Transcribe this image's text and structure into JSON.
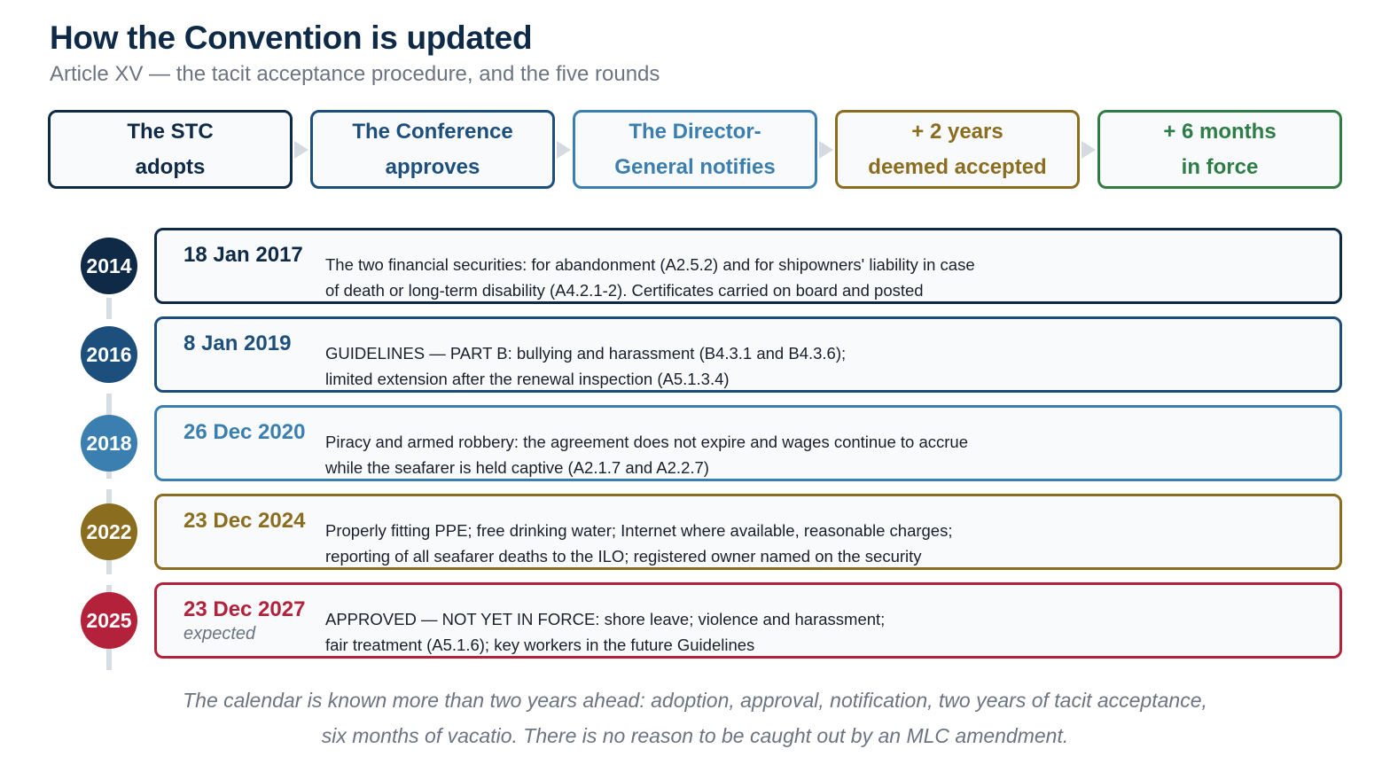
{
  "header": {
    "title": "How the Convention is updated",
    "subtitle": "Article XV — the tacit acceptance procedure, and the five rounds"
  },
  "steps": [
    {
      "line1": "The STC",
      "line2": "adopts",
      "color": "#0f2a47"
    },
    {
      "line1": "The Conference",
      "line2": "approves",
      "color": "#1d4f7c"
    },
    {
      "line1": "The Director-",
      "line2": "General notifies",
      "color": "#3b7fb0"
    },
    {
      "line1": "+ 2 years",
      "line2": "deemed accepted",
      "color": "#8a6d1f"
    },
    {
      "line1": "+ 6 months",
      "line2": "in force",
      "color": "#2e7d47"
    }
  ],
  "rounds": [
    {
      "year": "2014",
      "date": "18 Jan 2017",
      "note": "",
      "line1": "The two financial securities: for abandonment (A2.5.2) and for shipowners' liability in case",
      "line2": "of death or long-term disability (A4.2.1-2). Certificates carried on board and posted",
      "color": "#0f2a47"
    },
    {
      "year": "2016",
      "date": "8 Jan 2019",
      "note": "",
      "line1": "GUIDELINES — PART B: bullying and harassment (B4.3.1 and B4.3.6);",
      "line2": "limited extension after the renewal inspection (A5.1.3.4)",
      "color": "#1d4f7c"
    },
    {
      "year": "2018",
      "date": "26 Dec 2020",
      "note": "",
      "line1": "Piracy and armed robbery: the agreement does not expire and wages continue to accrue",
      "line2": "while the seafarer is held captive (A2.1.7 and A2.2.7)",
      "color": "#3b7fb0"
    },
    {
      "year": "2022",
      "date": "23 Dec 2024",
      "note": "",
      "line1": "Properly fitting PPE; free drinking water; Internet where available, reasonable charges;",
      "line2": "reporting of all seafarer deaths to the ILO; registered owner named on the security",
      "color": "#8a6d1f"
    },
    {
      "year": "2025",
      "date": "23 Dec 2027",
      "note": "expected",
      "line1": "APPROVED — NOT YET IN FORCE: shore leave; violence and harassment;",
      "line2": "fair treatment (A5.1.6); key workers in the future Guidelines",
      "color": "#b3223a"
    }
  ],
  "footer": {
    "line1": "The calendar is known more than two years ahead: adoption, approval, notification, two years of tacit acceptance,",
    "line2": "six months of vacatio. There is no reason to be caught out by an MLC amendment."
  }
}
